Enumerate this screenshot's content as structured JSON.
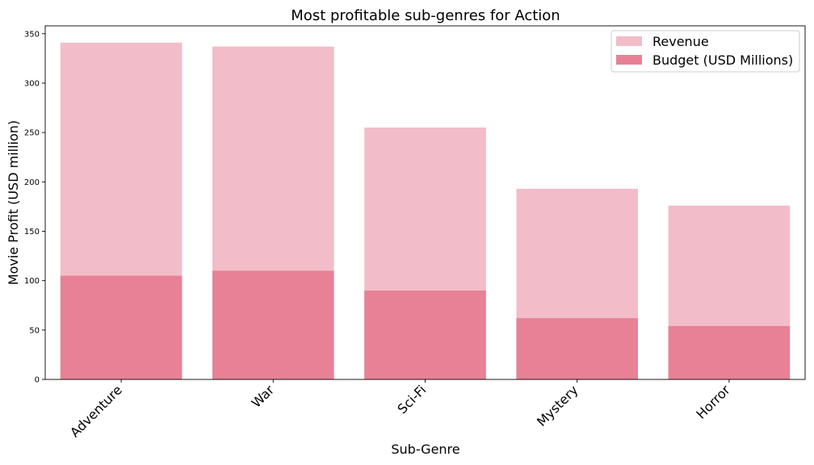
{
  "chart_data": {
    "type": "bar",
    "title": "Most profitable sub-genres for Action",
    "xlabel": "Sub-Genre",
    "ylabel": "Movie Profit (USD million)",
    "categories": [
      "Adventure",
      "War",
      "Sci-Fi",
      "Mystery",
      "Horror"
    ],
    "series": [
      {
        "name": "Revenue",
        "values": [
          341,
          337,
          255,
          193,
          176
        ],
        "color": "#f2bdc8"
      },
      {
        "name": "Budget (USD Millions)",
        "values": [
          105,
          110,
          90,
          62,
          54
        ],
        "color": "#e88195"
      }
    ],
    "overlay": true,
    "ylim": [
      0,
      358
    ],
    "yticks": [
      0,
      50,
      100,
      150,
      200,
      250,
      300,
      350
    ],
    "grid": false,
    "legend_position": "top-right"
  }
}
